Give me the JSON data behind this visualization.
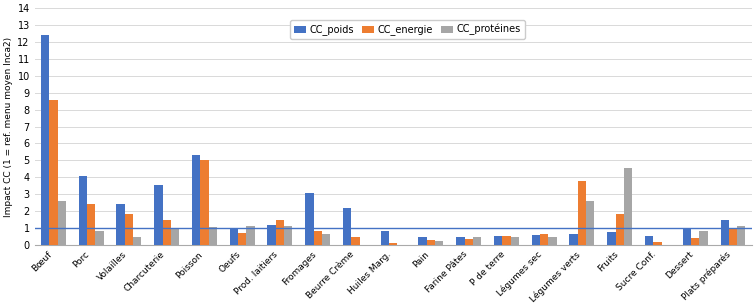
{
  "categories": [
    "Bœuf",
    "Porc",
    "Volailles",
    "Charcuterie",
    "Poisson",
    "Oeufs",
    "Prod. laitiers",
    "Fromages",
    "Beurre Crème",
    "Huiles Marg.",
    "Pain",
    "Farine Pâtes",
    "P de terre",
    "Légumes sec",
    "Légumes verts",
    "Fruits",
    "Sucre Conf.",
    "Dessert",
    "Plats préparés"
  ],
  "CC_poids": [
    12.4,
    4.1,
    2.4,
    3.55,
    5.3,
    1.0,
    1.2,
    3.1,
    2.2,
    0.85,
    0.5,
    0.45,
    0.55,
    0.6,
    0.65,
    0.75,
    0.55,
    1.0,
    1.5
  ],
  "CC_energie": [
    8.6,
    2.45,
    1.85,
    1.5,
    5.0,
    0.7,
    1.5,
    0.8,
    0.45,
    0.1,
    0.3,
    0.35,
    0.55,
    0.65,
    3.8,
    1.85,
    0.2,
    0.4,
    1.0
  ],
  "CC_proteines": [
    2.6,
    0.8,
    0.45,
    1.0,
    1.05,
    1.1,
    1.1,
    0.65,
    0.0,
    0.0,
    0.25,
    0.5,
    0.5,
    0.5,
    2.6,
    4.55,
    0.0,
    0.8,
    1.1
  ],
  "color_poids": "#4472c4",
  "color_energie": "#ed7d31",
  "color_proteines": "#a6a6a6",
  "ylabel": "Impact CC (1 = ref. menu moyen Inca2)",
  "ylim": [
    0,
    14
  ],
  "yticks": [
    0,
    1,
    2,
    3,
    4,
    5,
    6,
    7,
    8,
    9,
    10,
    11,
    12,
    13,
    14
  ],
  "legend_labels": [
    "CC_poids",
    "CC_energie",
    "CC_protéines"
  ],
  "hline_y": 1.0,
  "hline_color": "#4472c4",
  "bar_width": 0.22,
  "grid_color": "#d9d9d9",
  "background_color": "#ffffff"
}
